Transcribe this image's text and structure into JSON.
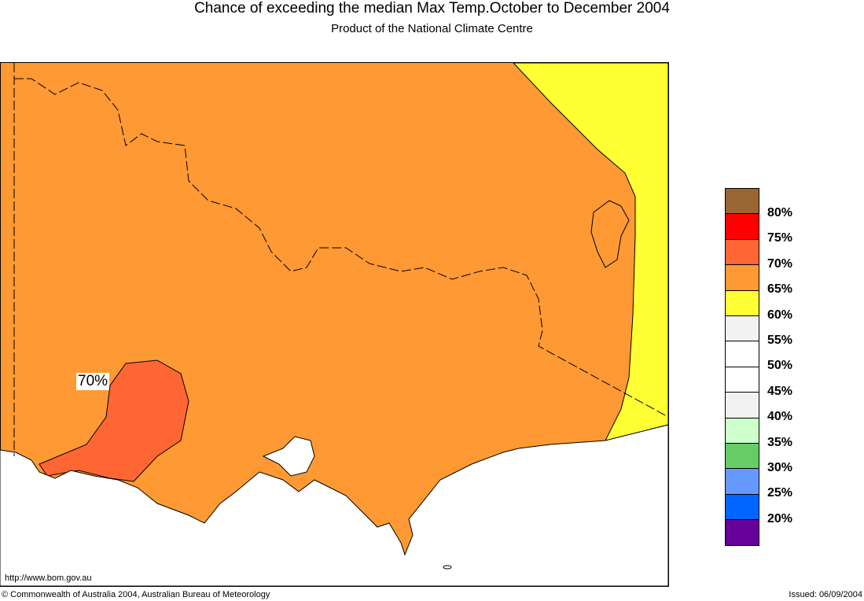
{
  "title": "Chance of exceeding the median Max Temp.October to December 2004",
  "subtitle": "Product of the National Climate Centre",
  "map_label": "70%",
  "url": "http://www.bom.gov.au",
  "copyright": "© Commonwealth of Australia 2004, Australian Bureau of Meteorology",
  "issued": "Issued: 06/09/2004",
  "legend": {
    "colors": [
      "#996633",
      "#ff0000",
      "#ff6633",
      "#ff9933",
      "#ffff33",
      "#f2f2f2",
      "#ffffff",
      "#ffffff",
      "#f2f2f2",
      "#ccffcc",
      "#66cc66",
      "#6699ff",
      "#0066ff",
      "#660099"
    ],
    "labels": [
      "80%",
      "75%",
      "70%",
      "65%",
      "60%",
      "55%",
      "50%",
      "45%",
      "40%",
      "35%",
      "30%",
      "25%",
      "20%"
    ]
  }
}
